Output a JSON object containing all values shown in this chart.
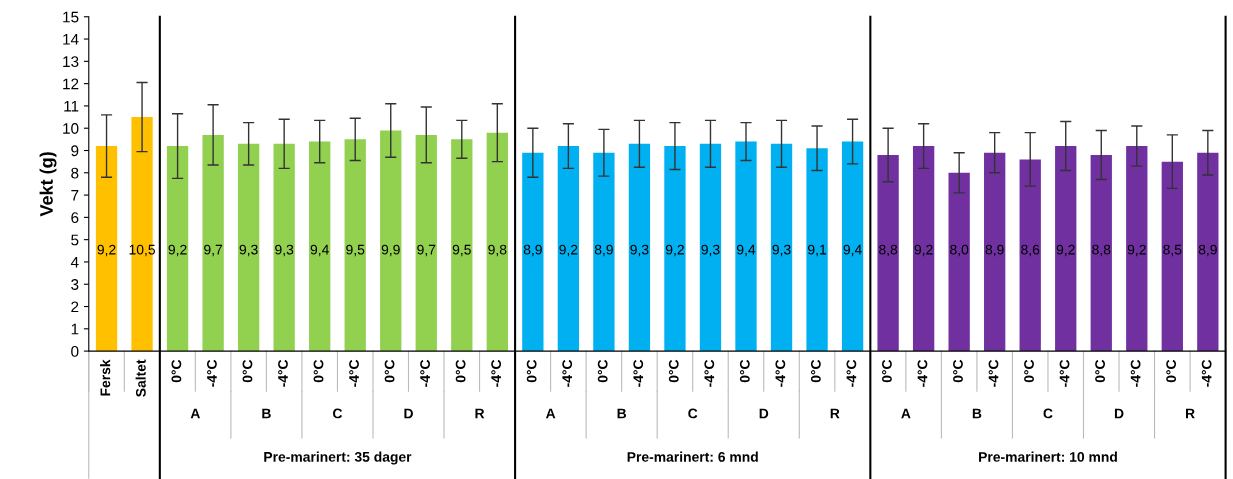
{
  "chart_data": {
    "type": "bar",
    "ylabel": "Vekt (g)",
    "categories": [
      "Fersk",
      "Saltet",
      "0°C",
      "-4°C",
      "0°C",
      "-4°C",
      "0°C",
      "-4°C",
      "0°C",
      "-4°C",
      "0°C",
      "-4°C",
      "0°C",
      "-4°C",
      "0°C",
      "-4°C",
      "0°C",
      "-4°C",
      "0°C",
      "-4°C",
      "0°C",
      "-4°C",
      "0°C",
      "-4°C",
      "0°C",
      "-4°C",
      "0°C",
      "-4°C",
      "0°C",
      "-4°C",
      "0°C",
      "-4°C"
    ],
    "values": [
      9.2,
      10.5,
      9.2,
      9.7,
      9.3,
      9.3,
      9.4,
      9.5,
      9.9,
      9.7,
      9.5,
      9.8,
      8.9,
      9.2,
      8.9,
      9.3,
      9.2,
      9.3,
      9.4,
      9.3,
      9.1,
      9.4,
      8.8,
      9.2,
      8.0,
      8.9,
      8.6,
      9.2,
      8.8,
      9.2,
      8.5,
      8.9
    ],
    "value_labels": [
      "9,2",
      "10,5",
      "9,2",
      "9,7",
      "9,3",
      "9,3",
      "9,4",
      "9,5",
      "9,9",
      "9,7",
      "9,5",
      "9,8",
      "8,9",
      "9,2",
      "8,9",
      "9,3",
      "9,2",
      "9,3",
      "9,4",
      "9,3",
      "9,1",
      "9,4",
      "8,8",
      "9,2",
      "8,0",
      "8,9",
      "8,6",
      "9,2",
      "8,8",
      "9,2",
      "8,5",
      "8,9"
    ],
    "errors": [
      1.4,
      1.55,
      1.45,
      1.35,
      0.95,
      1.1,
      0.95,
      0.95,
      1.2,
      1.25,
      0.85,
      1.3,
      1.1,
      1.0,
      1.05,
      1.05,
      1.05,
      1.05,
      0.85,
      1.05,
      1.0,
      1.0,
      1.2,
      1.0,
      0.9,
      0.9,
      1.2,
      1.1,
      1.1,
      0.9,
      1.2,
      1.0
    ],
    "colors": [
      "#ffc000",
      "#ffc000",
      "#92d050",
      "#92d050",
      "#92d050",
      "#92d050",
      "#92d050",
      "#92d050",
      "#92d050",
      "#92d050",
      "#92d050",
      "#92d050",
      "#00b0f0",
      "#00b0f0",
      "#00b0f0",
      "#00b0f0",
      "#00b0f0",
      "#00b0f0",
      "#00b0f0",
      "#00b0f0",
      "#00b0f0",
      "#00b0f0",
      "#7030a0",
      "#7030a0",
      "#7030a0",
      "#7030a0",
      "#7030a0",
      "#7030a0",
      "#7030a0",
      "#7030a0",
      "#7030a0",
      "#7030a0"
    ],
    "ylim": [
      0,
      15
    ],
    "yticks": [
      0,
      1,
      2,
      3,
      4,
      5,
      6,
      7,
      8,
      9,
      10,
      11,
      12,
      13,
      14,
      15
    ],
    "grid": false,
    "legend": false,
    "annotations": [
      "A",
      "B",
      "C",
      "D",
      "R",
      "A",
      "B",
      "C",
      "D",
      "R",
      "A",
      "B",
      "C",
      "D",
      "R",
      "Pre-marinert: 35 dager",
      "Pre-marinert: 6 mnd",
      "Pre-marinert: 10 mnd"
    ]
  }
}
